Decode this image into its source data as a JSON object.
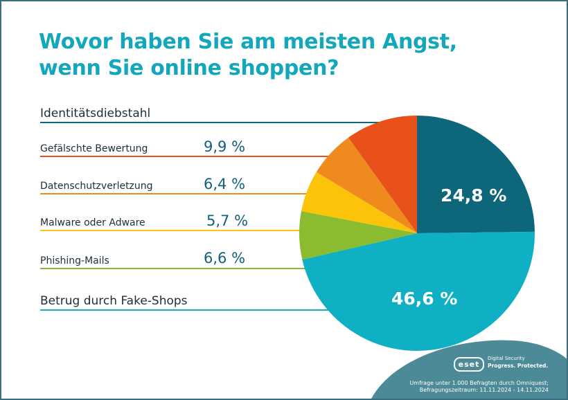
{
  "title_line1": "Wovor haben Sie am meisten Angst,",
  "title_line2": "wenn Sie online shoppen?",
  "chart_data": {
    "type": "pie",
    "title": "Wovor haben Sie am meisten Angst, wenn Sie online shoppen?",
    "slices": [
      {
        "label": "Identitätsdiebstahl",
        "value": 24.8,
        "value_label": "24,8 %",
        "color": "#0e667b"
      },
      {
        "label": "Gefälschte Bewertung",
        "value": 9.9,
        "value_label": "9,9 %",
        "color": "#e8521a"
      },
      {
        "label": "Datenschutzverletzung",
        "value": 6.4,
        "value_label": "6,4 %",
        "color": "#ef8a1f"
      },
      {
        "label": "Malware oder Adware",
        "value": 5.7,
        "value_label": "5,7 %",
        "color": "#fbc30a"
      },
      {
        "label": "Phishing-Mails",
        "value": 6.6,
        "value_label": "6,6 %",
        "color": "#8bbb2e"
      },
      {
        "label": "Betrug durch Fake-Shops",
        "value": 46.6,
        "value_label": "46,6 %",
        "color": "#0fb0c3"
      }
    ]
  },
  "footer_line1": "Umfrage unter 1.000 Befragten durch Omniquest;",
  "footer_line2": "Befragungszeitraum: 11.11.2024 - 14.11.2024",
  "brand": {
    "logo": "eset",
    "tagline1": "Digital Security",
    "tagline2": "Progress. Protected."
  }
}
